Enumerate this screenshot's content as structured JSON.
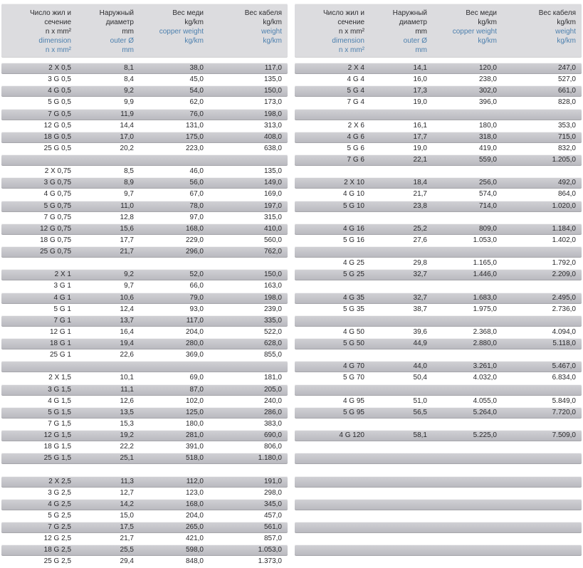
{
  "colors": {
    "accent_blue": "#4d80ae",
    "row_stripe_gray": "#bcbcc1",
    "header_gray": "#dcdcdf",
    "text_dark": "#28282b"
  },
  "header": {
    "cols": [
      {
        "ru": [
          "Число жил и",
          "сечение",
          "n x mm²"
        ],
        "en": [
          "dimension",
          "n x mm²"
        ]
      },
      {
        "ru": [
          "Наружный",
          "диаметр",
          "mm"
        ],
        "en": [
          "outer Ø",
          "mm"
        ]
      },
      {
        "ru": [
          "Вес меди",
          "kg/km"
        ],
        "en": [
          "copper weight",
          "kg/km"
        ]
      },
      {
        "ru": [
          "Вес кабеля",
          "kg/km"
        ],
        "en": [
          "weight",
          "kg/km"
        ]
      }
    ]
  },
  "tables": {
    "left": {
      "rows": [
        {
          "dim": "2 X 0,5",
          "outer": "8,1",
          "copper": "38,0",
          "weight": "117,0"
        },
        {
          "dim": "3 G 0,5",
          "outer": "8,4",
          "copper": "45,0",
          "weight": "135,0"
        },
        {
          "dim": "4 G 0,5",
          "outer": "9,2",
          "copper": "54,0",
          "weight": "150,0"
        },
        {
          "dim": "5 G 0,5",
          "outer": "9,9",
          "copper": "62,0",
          "weight": "173,0"
        },
        {
          "dim": "7 G 0,5",
          "outer": "11,9",
          "copper": "76,0",
          "weight": "198,0"
        },
        {
          "dim": "12 G 0,5",
          "outer": "14,4",
          "copper": "131,0",
          "weight": "313,0"
        },
        {
          "dim": "18 G 0,5",
          "outer": "17,0",
          "copper": "175,0",
          "weight": "408,0"
        },
        {
          "dim": "25 G 0,5",
          "outer": "20,2",
          "copper": "223,0",
          "weight": "638,0"
        },
        {
          "spacer": true
        },
        {
          "dim": "2 X 0,75",
          "outer": "8,5",
          "copper": "46,0",
          "weight": "135,0"
        },
        {
          "dim": "3 G 0,75",
          "outer": "8,9",
          "copper": "56,0",
          "weight": "149,0"
        },
        {
          "dim": "4 G 0,75",
          "outer": "9,7",
          "copper": "67,0",
          "weight": "169,0"
        },
        {
          "dim": "5 G 0,75",
          "outer": "11,0",
          "copper": "78,0",
          "weight": "197,0"
        },
        {
          "dim": "7 G 0,75",
          "outer": "12,8",
          "copper": "97,0",
          "weight": "315,0"
        },
        {
          "dim": "12 G 0,75",
          "outer": "15,6",
          "copper": "168,0",
          "weight": "410,0"
        },
        {
          "dim": "18 G 0,75",
          "outer": "17,7",
          "copper": "229,0",
          "weight": "560,0"
        },
        {
          "dim": "25 G 0,75",
          "outer": "21,7",
          "copper": "296,0",
          "weight": "762,0"
        },
        {
          "spacer": true
        },
        {
          "dim": "2 X 1",
          "outer": "9,2",
          "copper": "52,0",
          "weight": "150,0"
        },
        {
          "dim": "3 G 1",
          "outer": "9,7",
          "copper": "66,0",
          "weight": "163,0"
        },
        {
          "dim": "4 G 1",
          "outer": "10,6",
          "copper": "79,0",
          "weight": "198,0"
        },
        {
          "dim": "5 G 1",
          "outer": "12,4",
          "copper": "93,0",
          "weight": "239,0"
        },
        {
          "dim": "7 G 1",
          "outer": "13,7",
          "copper": "117,0",
          "weight": "335,0"
        },
        {
          "dim": "12 G 1",
          "outer": "16,4",
          "copper": "204,0",
          "weight": "522,0"
        },
        {
          "dim": "18 G 1",
          "outer": "19,4",
          "copper": "280,0",
          "weight": "628,0"
        },
        {
          "dim": "25 G 1",
          "outer": "22,6",
          "copper": "369,0",
          "weight": "855,0"
        },
        {
          "spacer": true
        },
        {
          "dim": "2 X 1,5",
          "outer": "10,1",
          "copper": "69,0",
          "weight": "181,0"
        },
        {
          "dim": "3 G 1,5",
          "outer": "11,1",
          "copper": "87,0",
          "weight": "205,0"
        },
        {
          "dim": "4 G 1,5",
          "outer": "12,6",
          "copper": "102,0",
          "weight": "240,0"
        },
        {
          "dim": "5 G 1,5",
          "outer": "13,5",
          "copper": "125,0",
          "weight": "286,0"
        },
        {
          "dim": "7 G 1,5",
          "outer": "15,3",
          "copper": "180,0",
          "weight": "383,0"
        },
        {
          "dim": "12 G 1,5",
          "outer": "19,2",
          "copper": "281,0",
          "weight": "690,0"
        },
        {
          "dim": "18 G 1,5",
          "outer": "22,2",
          "copper": "391,0",
          "weight": "806,0"
        },
        {
          "dim": "25 G 1,5",
          "outer": "25,1",
          "copper": "518,0",
          "weight": "1.180,0"
        },
        {
          "spacer": true
        },
        {
          "dim": "2 X 2,5",
          "outer": "11,3",
          "copper": "112,0",
          "weight": "191,0"
        },
        {
          "dim": "3 G 2,5",
          "outer": "12,7",
          "copper": "123,0",
          "weight": "298,0"
        },
        {
          "dim": "4 G 2,5",
          "outer": "14,2",
          "copper": "168,0",
          "weight": "345,0"
        },
        {
          "dim": "5 G 2,5",
          "outer": "15,0",
          "copper": "204,0",
          "weight": "457,0"
        },
        {
          "dim": "7 G 2,5",
          "outer": "17,5",
          "copper": "265,0",
          "weight": "561,0"
        },
        {
          "dim": "12 G 2,5",
          "outer": "21,7",
          "copper": "421,0",
          "weight": "857,0"
        },
        {
          "dim": "18 G 2,5",
          "outer": "25,5",
          "copper": "598,0",
          "weight": "1.053,0"
        },
        {
          "dim": "25 G 2,5",
          "outer": "29,4",
          "copper": "848,0",
          "weight": "1.373,0"
        }
      ]
    },
    "right": {
      "rows": [
        {
          "dim": "2 X 4",
          "outer": "14,1",
          "copper": "120,0",
          "weight": "247,0"
        },
        {
          "dim": "4 G 4",
          "outer": "16,0",
          "copper": "238,0",
          "weight": "527,0"
        },
        {
          "dim": "5 G 4",
          "outer": "17,3",
          "copper": "302,0",
          "weight": "661,0"
        },
        {
          "dim": "7 G 4",
          "outer": "19,0",
          "copper": "396,0",
          "weight": "828,0"
        },
        {
          "spacer": true
        },
        {
          "dim": "2 X 6",
          "outer": "16,1",
          "copper": "180,0",
          "weight": "353,0"
        },
        {
          "dim": "4 G 6",
          "outer": "17,7",
          "copper": "318,0",
          "weight": "715,0"
        },
        {
          "dim": "5 G 6",
          "outer": "19,0",
          "copper": "419,0",
          "weight": "832,0"
        },
        {
          "dim": "7 G 6",
          "outer": "22,1",
          "copper": "559,0",
          "weight": "1.205,0"
        },
        {
          "spacer": true
        },
        {
          "dim": "2 X 10",
          "outer": "18,4",
          "copper": "256,0",
          "weight": "492,0"
        },
        {
          "dim": "4 G 10",
          "outer": "21,7",
          "copper": "574,0",
          "weight": "864,0"
        },
        {
          "dim": "5 G 10",
          "outer": "23,8",
          "copper": "714,0",
          "weight": "1.020,0"
        },
        {
          "spacer": true
        },
        {
          "dim": "4 G 16",
          "outer": "25,2",
          "copper": "809,0",
          "weight": "1.184,0"
        },
        {
          "dim": "5 G 16",
          "outer": "27,6",
          "copper": "1.053,0",
          "weight": "1.402,0"
        },
        {
          "spacer": true
        },
        {
          "dim": "4 G 25",
          "outer": "29,8",
          "copper": "1.165,0",
          "weight": "1.792,0"
        },
        {
          "dim": "5 G 25",
          "outer": "32,7",
          "copper": "1.446,0",
          "weight": "2.209,0"
        },
        {
          "spacer": true
        },
        {
          "dim": "4 G 35",
          "outer": "32,7",
          "copper": "1.683,0",
          "weight": "2.495,0"
        },
        {
          "dim": "5 G 35",
          "outer": "38,7",
          "copper": "1.975,0",
          "weight": "2.736,0"
        },
        {
          "spacer": true
        },
        {
          "dim": "4 G 50",
          "outer": "39,6",
          "copper": "2.368,0",
          "weight": "4.094,0"
        },
        {
          "dim": "5 G 50",
          "outer": "44,9",
          "copper": "2.880,0",
          "weight": "5.118,0"
        },
        {
          "spacer": true
        },
        {
          "dim": "4 G 70",
          "outer": "44,0",
          "copper": "3.261,0",
          "weight": "5.467,0"
        },
        {
          "dim": "5 G 70",
          "outer": "50,4",
          "copper": "4.032,0",
          "weight": "6.834,0"
        },
        {
          "spacer": true
        },
        {
          "dim": "4 G 95",
          "outer": "51,0",
          "copper": "4.055,0",
          "weight": "5.849,0"
        },
        {
          "dim": "5 G 95",
          "outer": "56,5",
          "copper": "5.264,0",
          "weight": "7.720,0"
        },
        {
          "spacer": true
        },
        {
          "dim": "4 G 120",
          "outer": "58,1",
          "copper": "5.225,0",
          "weight": "7.509,0"
        },
        {
          "spacer": true
        },
        {
          "spacer": true
        },
        {
          "spacer": true
        },
        {
          "spacer": true
        },
        {
          "spacer": true
        },
        {
          "spacer": true
        },
        {
          "spacer": true
        },
        {
          "spacer": true
        },
        {
          "spacer": true
        },
        {
          "spacer": true
        },
        {
          "spacer": true
        }
      ]
    }
  }
}
